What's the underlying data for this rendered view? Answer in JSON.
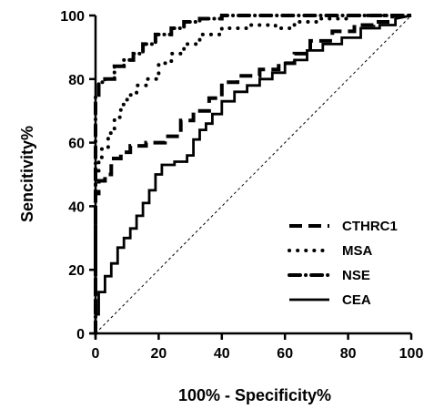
{
  "chart_data": {
    "type": "line",
    "title": "",
    "xlabel": "100% - Specificity%",
    "ylabel": "Sencitivity%",
    "xlim": [
      0,
      100
    ],
    "ylim": [
      0,
      100
    ],
    "xticks": [
      "0",
      "20",
      "40",
      "60",
      "80",
      "100"
    ],
    "yticks": [
      "0",
      "20",
      "40",
      "60",
      "80",
      "100"
    ],
    "grid": false,
    "legend_position": "bottom-right",
    "reference_line": {
      "x": [
        0,
        100
      ],
      "y": [
        0,
        100
      ],
      "style": "dashed"
    },
    "series": [
      {
        "name": "CTHRC1",
        "style": "dashed",
        "x": [
          0,
          0,
          1,
          1,
          3,
          3,
          5,
          5,
          8,
          8,
          11,
          11,
          16,
          16,
          22,
          22,
          27,
          27,
          31,
          31,
          36,
          36,
          40,
          40,
          45,
          45,
          52,
          52,
          58,
          58,
          63,
          63,
          68,
          68,
          75,
          75,
          82,
          82,
          88,
          88,
          94,
          94,
          100
        ],
        "y": [
          0,
          44,
          44,
          48,
          48,
          50,
          50,
          55,
          55,
          57,
          57,
          59,
          59,
          60,
          60,
          62,
          62,
          67,
          67,
          70,
          70,
          74,
          74,
          79,
          79,
          81,
          81,
          83,
          83,
          85,
          85,
          88,
          88,
          92,
          92,
          95,
          95,
          97,
          97,
          98,
          98,
          100,
          100
        ]
      },
      {
        "name": "MSA",
        "style": "dotted",
        "x": [
          0,
          0,
          1,
          1,
          2,
          2,
          4,
          4,
          6,
          6,
          8,
          8,
          10,
          10,
          13,
          13,
          16,
          16,
          20,
          20,
          24,
          24,
          28,
          28,
          33,
          33,
          40,
          40,
          48,
          48,
          57,
          57,
          63,
          63,
          70,
          70,
          80,
          80,
          100
        ],
        "y": [
          0,
          50,
          50,
          55,
          55,
          58,
          58,
          63,
          63,
          68,
          68,
          72,
          72,
          75,
          75,
          78,
          78,
          80,
          80,
          85,
          85,
          88,
          88,
          91,
          91,
          94,
          94,
          96,
          96,
          97,
          97,
          96,
          96,
          98,
          98,
          99,
          99,
          100,
          100
        ]
      },
      {
        "name": "NSE",
        "style": "dashdot",
        "x": [
          0,
          0,
          1,
          1,
          3,
          3,
          6,
          6,
          9,
          9,
          12,
          12,
          15,
          15,
          19,
          19,
          24,
          24,
          28,
          28,
          33,
          33,
          40,
          40,
          100
        ],
        "y": [
          0,
          75,
          75,
          79,
          79,
          80,
          80,
          84,
          84,
          86,
          86,
          88,
          88,
          91,
          91,
          94,
          94,
          96,
          96,
          98,
          98,
          99,
          99,
          100,
          100
        ]
      },
      {
        "name": "CEA",
        "style": "solid",
        "x": [
          0,
          0,
          1,
          1,
          3,
          3,
          5,
          5,
          7,
          7,
          9,
          9,
          11,
          11,
          13,
          13,
          15,
          15,
          17,
          17,
          19,
          19,
          21,
          21,
          25,
          25,
          29,
          29,
          31,
          31,
          33,
          33,
          35,
          35,
          37,
          37,
          40,
          40,
          44,
          44,
          48,
          48,
          52,
          52,
          56,
          56,
          60,
          60,
          63,
          63,
          67,
          67,
          72,
          72,
          78,
          78,
          84,
          84,
          90,
          90,
          95,
          95,
          100
        ],
        "y": [
          0,
          6,
          6,
          13,
          13,
          18,
          18,
          22,
          22,
          27,
          27,
          30,
          30,
          33,
          33,
          37,
          37,
          41,
          41,
          45,
          45,
          50,
          50,
          53,
          53,
          54,
          54,
          56,
          56,
          61,
          61,
          64,
          64,
          66,
          66,
          69,
          69,
          73,
          73,
          76,
          76,
          78,
          78,
          80,
          80,
          82,
          82,
          85,
          85,
          86,
          86,
          89,
          89,
          91,
          91,
          93,
          93,
          96,
          96,
          97,
          97,
          99,
          100
        ]
      }
    ]
  }
}
